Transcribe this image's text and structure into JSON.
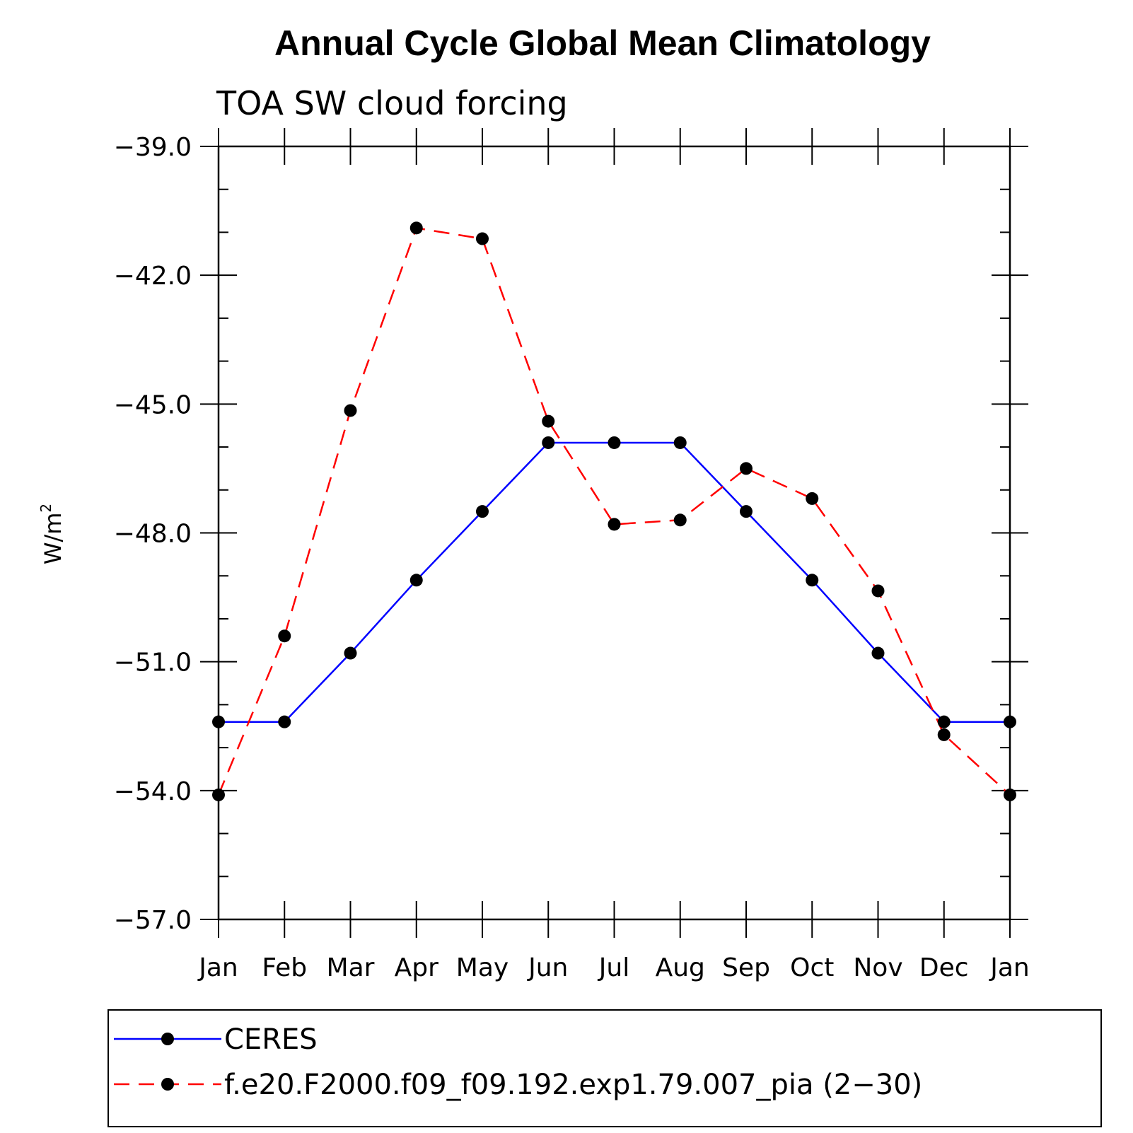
{
  "chart_data": {
    "type": "line",
    "title": "Annual Cycle Global Mean Climatology",
    "subtitle": "TOA SW cloud forcing",
    "ylabel": "W/m",
    "ylabel_superscript": "2",
    "xlabel": "",
    "ylim": [
      -57.0,
      -39.0
    ],
    "yticks": [
      "−39.0",
      "−42.0",
      "−45.0",
      "−48.0",
      "−51.0",
      "−54.0",
      "−57.0"
    ],
    "ytick_values": [
      -39.0,
      -42.0,
      -45.0,
      -48.0,
      -51.0,
      -54.0,
      -57.0
    ],
    "categories": [
      "Jan",
      "Feb",
      "Mar",
      "Apr",
      "May",
      "Jun",
      "Jul",
      "Aug",
      "Sep",
      "Oct",
      "Nov",
      "Dec",
      "Jan"
    ],
    "series": [
      {
        "name": "CERES",
        "color": "#0000ff",
        "dash": "solid",
        "values": [
          -52.4,
          -52.4,
          -50.8,
          -49.1,
          -47.5,
          -45.9,
          -45.9,
          -45.9,
          -47.5,
          -49.1,
          -50.8,
          -52.4,
          -52.4
        ]
      },
      {
        "name": "f.e20.F2000.f09_f09.192.exp1.79.007_pia (2−30)",
        "color": "#ff0000",
        "dash": "dashed",
        "values": [
          -54.1,
          -50.4,
          -45.15,
          -40.9,
          -41.15,
          -45.4,
          -47.8,
          -47.7,
          -46.5,
          -47.2,
          -49.35,
          -52.7,
          -54.1
        ]
      }
    ],
    "legend_position": "bottom"
  }
}
